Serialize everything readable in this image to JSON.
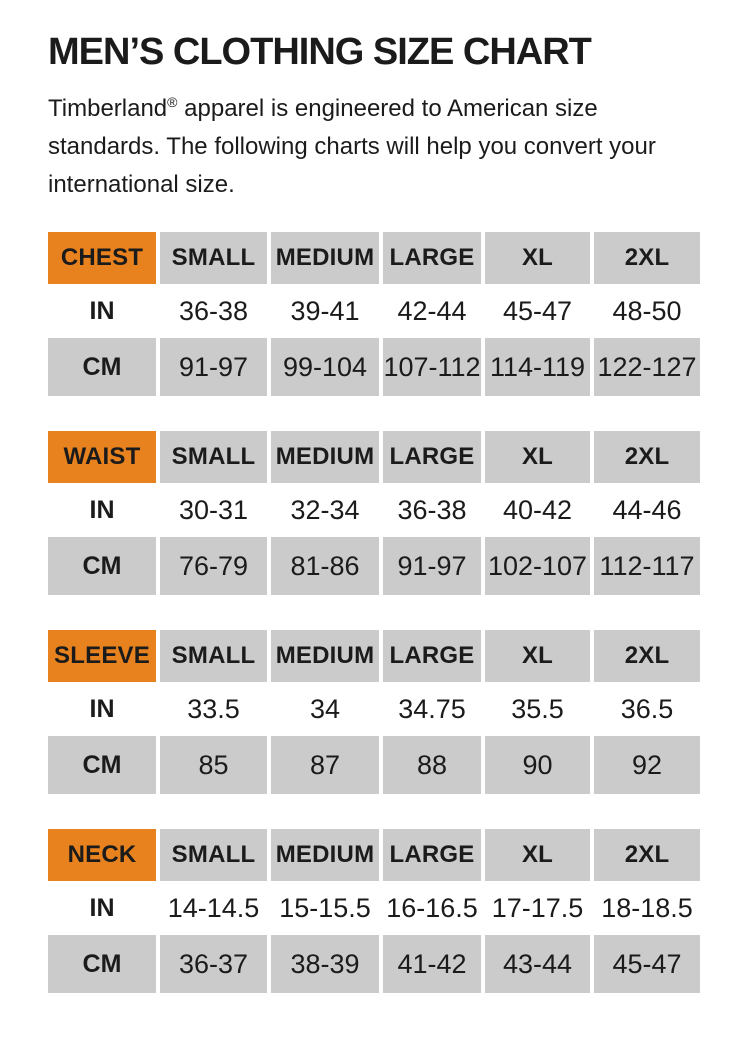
{
  "page": {
    "title": "MEN’S CLOTHING SIZE CHART"
  },
  "intro": {
    "brand": "Timberland",
    "registered_mark": "®",
    "line1_rest": " apparel is engineered to American size",
    "line2": "standards. The following charts will help you convert your",
    "line3": "international size."
  },
  "units": {
    "inches_label": "IN",
    "centimeters_label": "CM"
  },
  "sizes": [
    "SMALL",
    "MEDIUM",
    "LARGE",
    "XL",
    "2XL"
  ],
  "tables": [
    {
      "label": "CHEST",
      "in": [
        "36-38",
        "39-41",
        "42-44",
        "45-47",
        "48-50"
      ],
      "cm": [
        "91-97",
        "99-104",
        "107-112",
        "114-119",
        "122-127"
      ]
    },
    {
      "label": "WAIST",
      "in": [
        "30-31",
        "32-34",
        "36-38",
        "40-42",
        "44-46"
      ],
      "cm": [
        "76-79",
        "81-86",
        "91-97",
        "102-107",
        "112-117"
      ]
    },
    {
      "label": "SLEEVE",
      "in": [
        "33.5",
        "34",
        "34.75",
        "35.5",
        "36.5"
      ],
      "cm": [
        "85",
        "87",
        "88",
        "90",
        "92"
      ]
    },
    {
      "label": "NECK",
      "in": [
        "14-14.5",
        "15-15.5",
        "16-16.5",
        "17-17.5",
        "18-18.5"
      ],
      "cm": [
        "36-37",
        "38-39",
        "41-42",
        "43-44",
        "45-47"
      ]
    }
  ],
  "colors": {
    "accent_orange": "#E8821E",
    "cell_gray": "#CBCBCB",
    "text": "#1B1B1B",
    "background": "#FFFFFF"
  }
}
